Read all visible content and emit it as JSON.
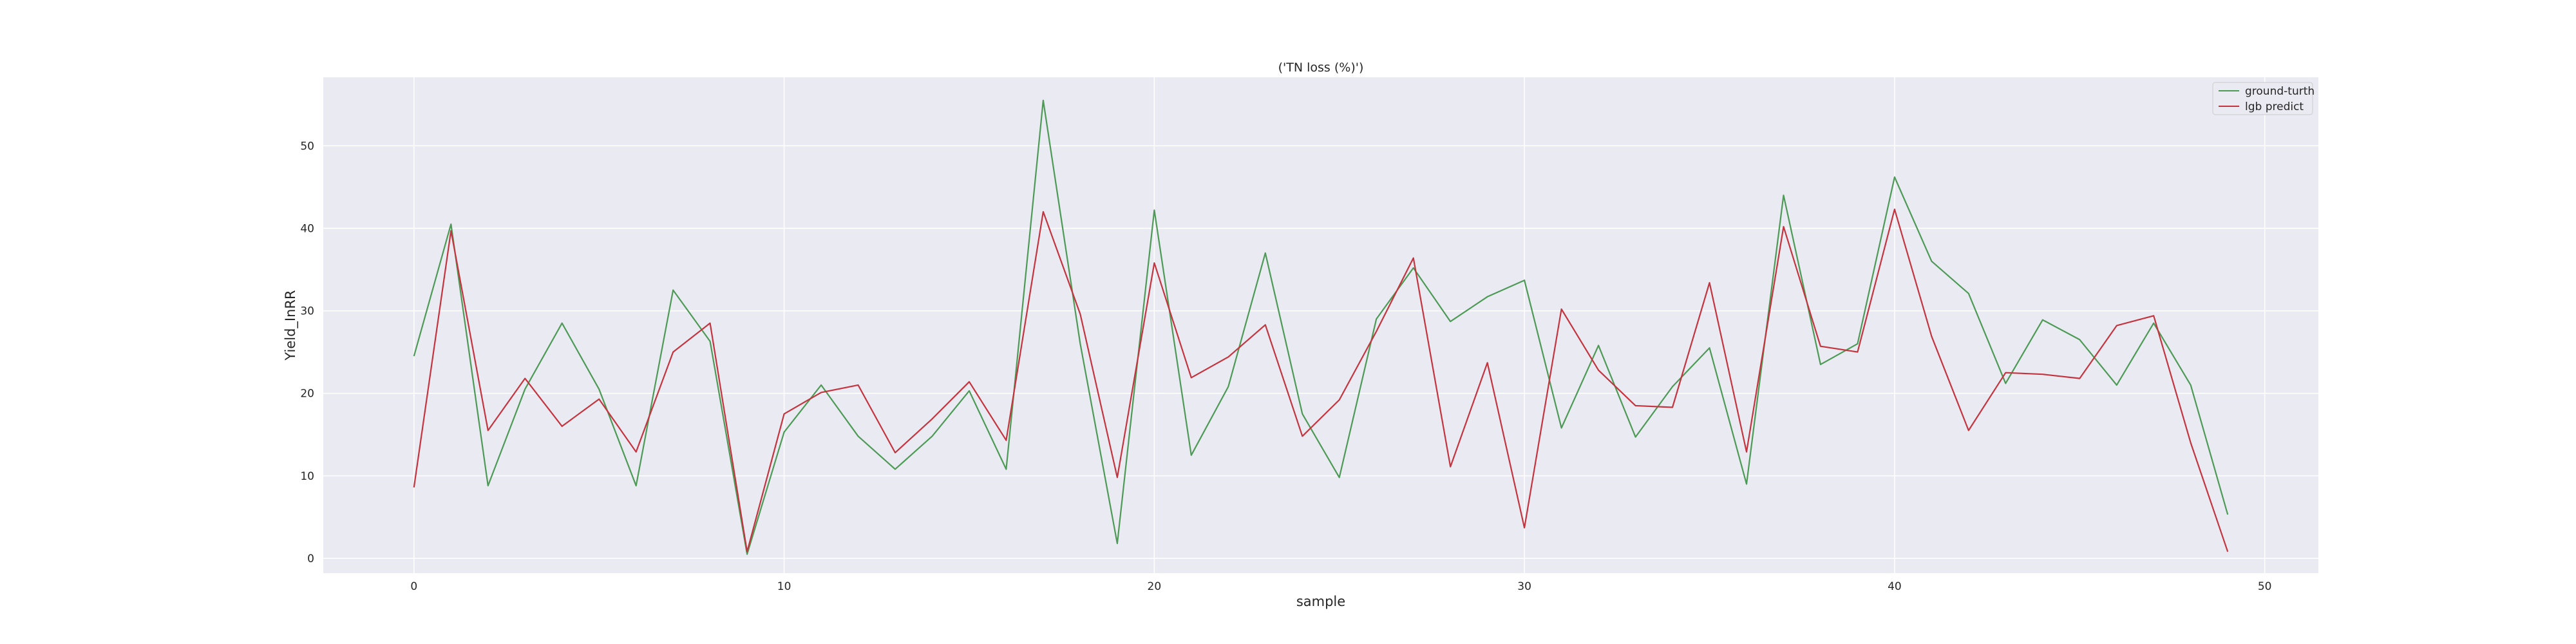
{
  "chart_data": {
    "type": "line",
    "title": "('TN loss (%)')",
    "xlabel": "sample",
    "ylabel": "Yield_InRR",
    "xlim": [
      -2.45,
      51.45
    ],
    "ylim": [
      -1.8,
      58.3
    ],
    "x_ticks": [
      0,
      10,
      20,
      30,
      40,
      50
    ],
    "y_ticks": [
      0,
      10,
      20,
      30,
      40,
      50
    ],
    "grid": true,
    "legend_position": "top-right",
    "x": [
      0,
      1,
      2,
      3,
      4,
      5,
      6,
      7,
      8,
      9,
      10,
      11,
      12,
      13,
      14,
      15,
      16,
      17,
      18,
      19,
      20,
      21,
      22,
      23,
      24,
      25,
      26,
      27,
      28,
      29,
      30,
      31,
      32,
      33,
      34,
      35,
      36,
      37,
      38,
      39,
      40,
      41,
      42,
      43,
      44,
      45,
      46,
      47,
      48,
      49
    ],
    "series": [
      {
        "name": "ground-turth",
        "color": "#4c9a55",
        "values": [
          24.5,
          40.5,
          8.8,
          20.5,
          28.5,
          20.5,
          8.8,
          32.5,
          26.3,
          0.5,
          15.3,
          21,
          14.8,
          10.8,
          14.8,
          20.3,
          10.8,
          55.5,
          26,
          1.8,
          42.2,
          12.5,
          20.8,
          37,
          17.5,
          9.8,
          29,
          35.2,
          28.7,
          31.7,
          33.7,
          15.8,
          25.8,
          14.7,
          20.8,
          25.5,
          9,
          44,
          23.5,
          26,
          46.2,
          36,
          32.1,
          21.2,
          28.9,
          26.5,
          21,
          28.5,
          21,
          5.3
        ]
      },
      {
        "name": "lgb predict",
        "color": "#c4343e",
        "values": [
          8.6,
          39.7,
          15.5,
          21.8,
          16,
          19.3,
          12.9,
          25,
          28.5,
          0.8,
          17.5,
          20.1,
          21,
          12.8,
          16.9,
          21.4,
          14.3,
          42,
          29.6,
          9.8,
          35.8,
          21.9,
          24.4,
          28.3,
          14.8,
          19.2,
          27.5,
          36.4,
          11.1,
          23.7,
          3.7,
          30.2,
          22.8,
          18.5,
          18.3,
          33.4,
          12.9,
          40.2,
          25.7,
          25,
          42.3,
          26.9,
          15.5,
          22.5,
          22.3,
          21.8,
          28.2,
          29.4,
          14,
          0.8
        ]
      }
    ]
  }
}
